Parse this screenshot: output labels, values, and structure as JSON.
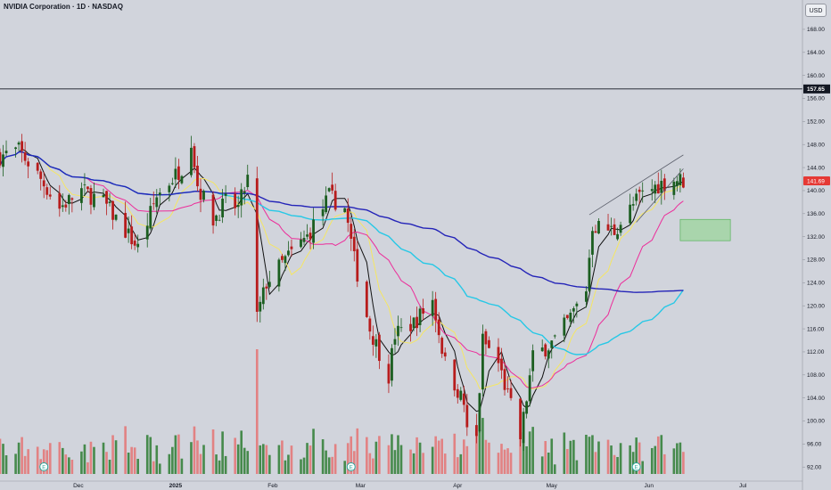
{
  "header": {
    "title": "NVIDIA Corporation · 1D · NASDAQ"
  },
  "currency_button": {
    "label": "USD"
  },
  "colors": {
    "background": "#d1d4dc",
    "candle_up": "#1b5e20",
    "candle_down": "#b71c1c",
    "volume_up": "#2e7d32",
    "volume_down": "#e57373",
    "ma_fast": "#111111",
    "ma_yellow": "#f5e663",
    "ma_magenta": "#ec2d9a",
    "ma_cyan": "#27c8e6",
    "ma_blue": "#2424b8",
    "last_price_badge": "#e53935",
    "resistance_badge": "#131722",
    "zone_fill": "#a5d6a7"
  },
  "chart_data": {
    "type": "candlestick",
    "symbol": "NVDA",
    "interval": "1D",
    "exchange": "NASDAQ",
    "currency": "USD",
    "ylim": [
      90.8,
      170
    ],
    "y_ticks": [
      "168.00",
      "164.00",
      "160.00",
      "156.00",
      "152.00",
      "148.00",
      "144.00",
      "140.00",
      "136.00",
      "132.00",
      "128.00",
      "124.00",
      "120.00",
      "116.00",
      "112.00",
      "108.00",
      "104.00",
      "100.00",
      "96.00",
      "92.00"
    ],
    "x_ticks": [
      {
        "label": "Dec",
        "date": "2024-12-01"
      },
      {
        "label": "2025",
        "date": "2025-01-01"
      },
      {
        "label": "Feb",
        "date": "2025-02-01"
      },
      {
        "label": "Mar",
        "date": "2025-03-01"
      },
      {
        "label": "Apr",
        "date": "2025-04-01"
      },
      {
        "label": "May",
        "date": "2025-05-01"
      },
      {
        "label": "Jun",
        "date": "2025-06-01"
      },
      {
        "label": "Jul",
        "date": "2025-07-01"
      }
    ],
    "x_range": [
      "2024-11-06",
      "2025-07-20"
    ],
    "last_price": {
      "value": 141.69,
      "label": "141.69"
    },
    "resistance_line": {
      "value": 157.65,
      "label": "157.65"
    },
    "demand_zone": {
      "from": "2025-06-11",
      "to": "2025-06-27",
      "low": 131.3,
      "high": 135.0
    },
    "trendlines": [
      {
        "from": [
          "2025-05-13",
          135.8
        ],
        "to": [
          "2025-06-12",
          146.2
        ]
      },
      {
        "from": [
          "2025-05-28",
          134.5
        ],
        "to": [
          "2025-06-12",
          143.8
        ]
      }
    ],
    "price_anchors": [
      [
        "2024-11-06",
        146
      ],
      [
        "2024-11-12",
        147
      ],
      [
        "2024-11-19",
        142
      ],
      [
        "2024-11-25",
        137
      ],
      [
        "2024-12-02",
        140
      ],
      [
        "2024-12-09",
        138
      ],
      [
        "2024-12-16",
        133
      ],
      [
        "2024-12-20",
        130
      ],
      [
        "2024-12-26",
        139
      ],
      [
        "2025-01-03",
        144
      ],
      [
        "2025-01-06",
        149
      ],
      [
        "2025-01-08",
        141
      ],
      [
        "2025-01-13",
        135
      ],
      [
        "2025-01-17",
        138
      ],
      [
        "2025-01-21",
        137
      ],
      [
        "2025-01-24",
        142
      ],
      [
        "2025-01-27",
        118
      ],
      [
        "2025-01-30",
        124
      ],
      [
        "2025-02-05",
        128
      ],
      [
        "2025-02-12",
        132
      ],
      [
        "2025-02-19",
        139
      ],
      [
        "2025-02-24",
        137
      ],
      [
        "2025-02-27",
        128
      ],
      [
        "2025-03-04",
        116
      ],
      [
        "2025-03-10",
        108
      ],
      [
        "2025-03-12",
        115
      ],
      [
        "2025-03-18",
        117
      ],
      [
        "2025-03-24",
        121
      ],
      [
        "2025-03-28",
        110
      ],
      [
        "2025-04-03",
        103
      ],
      [
        "2025-04-04",
        98
      ],
      [
        "2025-04-07",
        97
      ],
      [
        "2025-04-09",
        114
      ],
      [
        "2025-04-14",
        110
      ],
      [
        "2025-04-21",
        97
      ],
      [
        "2025-04-25",
        111
      ],
      [
        "2025-05-02",
        114
      ],
      [
        "2025-05-07",
        118
      ],
      [
        "2025-05-12",
        123
      ],
      [
        "2025-05-14",
        134
      ],
      [
        "2025-05-21",
        133
      ],
      [
        "2025-05-29",
        139
      ],
      [
        "2025-06-04",
        141
      ],
      [
        "2025-06-10",
        142
      ],
      [
        "2025-06-12",
        141.69
      ]
    ],
    "earnings_markers": [
      "2024-11-20",
      "2025-02-26",
      "2025-05-28"
    ],
    "moving_averages": [
      {
        "color_key": "ma_fast",
        "period": 5
      },
      {
        "color_key": "ma_yellow",
        "period": 10
      },
      {
        "color_key": "ma_magenta",
        "period": 20
      },
      {
        "color_key": "ma_cyan",
        "period": 50
      },
      {
        "color_key": "ma_blue",
        "period": 100
      }
    ]
  }
}
